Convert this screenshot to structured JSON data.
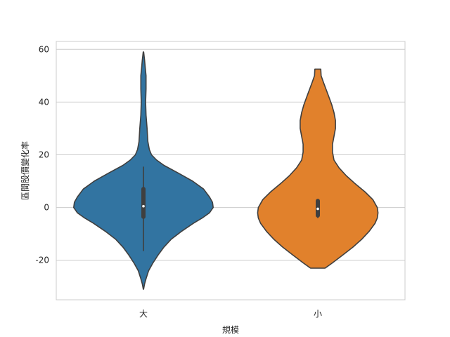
{
  "chart_data": {
    "type": "violin",
    "title": "",
    "xlabel": "規模",
    "ylabel": "區間股價變化率",
    "ylim": [
      -35,
      63
    ],
    "yticks": [
      -20,
      0,
      20,
      40,
      60
    ],
    "grid": "horizontal",
    "categories": [
      "大",
      "小"
    ],
    "colors": [
      "#3274a1",
      "#e1812c"
    ],
    "series": [
      {
        "category": "大",
        "min": -31,
        "max": 59,
        "median": 0.5,
        "q1": -3.5,
        "q3": 7,
        "whisker_low": -16.5,
        "whisker_high": 15.5,
        "density": [
          [
            -31,
            0.2
          ],
          [
            -29,
            1.5
          ],
          [
            -27,
            3.5
          ],
          [
            -24,
            7
          ],
          [
            -21,
            13
          ],
          [
            -18,
            20
          ],
          [
            -15,
            28
          ],
          [
            -12,
            38
          ],
          [
            -9,
            52
          ],
          [
            -6,
            68
          ],
          [
            -4,
            80
          ],
          [
            -2,
            90
          ],
          [
            0,
            95
          ],
          [
            2,
            94
          ],
          [
            4,
            90
          ],
          [
            7,
            82
          ],
          [
            10,
            67
          ],
          [
            13,
            48
          ],
          [
            16,
            28
          ],
          [
            18,
            18
          ],
          [
            20,
            11
          ],
          [
            22,
            8
          ],
          [
            25,
            6
          ],
          [
            30,
            5
          ],
          [
            35,
            3.5
          ],
          [
            40,
            3
          ],
          [
            45,
            3.5
          ],
          [
            50,
            3.5
          ],
          [
            53,
            2.5
          ],
          [
            56,
            1.5
          ],
          [
            59,
            0.3
          ]
        ]
      },
      {
        "category": "小",
        "min": -23,
        "max": 52.5,
        "median": -0.5,
        "q1": -3,
        "q3": 2.5,
        "whisker_low": -4,
        "whisker_high": 2.5,
        "density": [
          [
            -23,
            10
          ],
          [
            -21,
            20
          ],
          [
            -18,
            34
          ],
          [
            -15,
            48
          ],
          [
            -12,
            60
          ],
          [
            -9,
            70
          ],
          [
            -6,
            78
          ],
          [
            -4,
            81
          ],
          [
            -2,
            82
          ],
          [
            0,
            81
          ],
          [
            3,
            75
          ],
          [
            6,
            64
          ],
          [
            9,
            51
          ],
          [
            12,
            39
          ],
          [
            15,
            29
          ],
          [
            18,
            22
          ],
          [
            21,
            20
          ],
          [
            24,
            20
          ],
          [
            27,
            22
          ],
          [
            30,
            24
          ],
          [
            33,
            24
          ],
          [
            36,
            22
          ],
          [
            39,
            19
          ],
          [
            42,
            15
          ],
          [
            45,
            11
          ],
          [
            48,
            7
          ],
          [
            50,
            4.5
          ],
          [
            52.5,
            4
          ]
        ]
      }
    ]
  }
}
